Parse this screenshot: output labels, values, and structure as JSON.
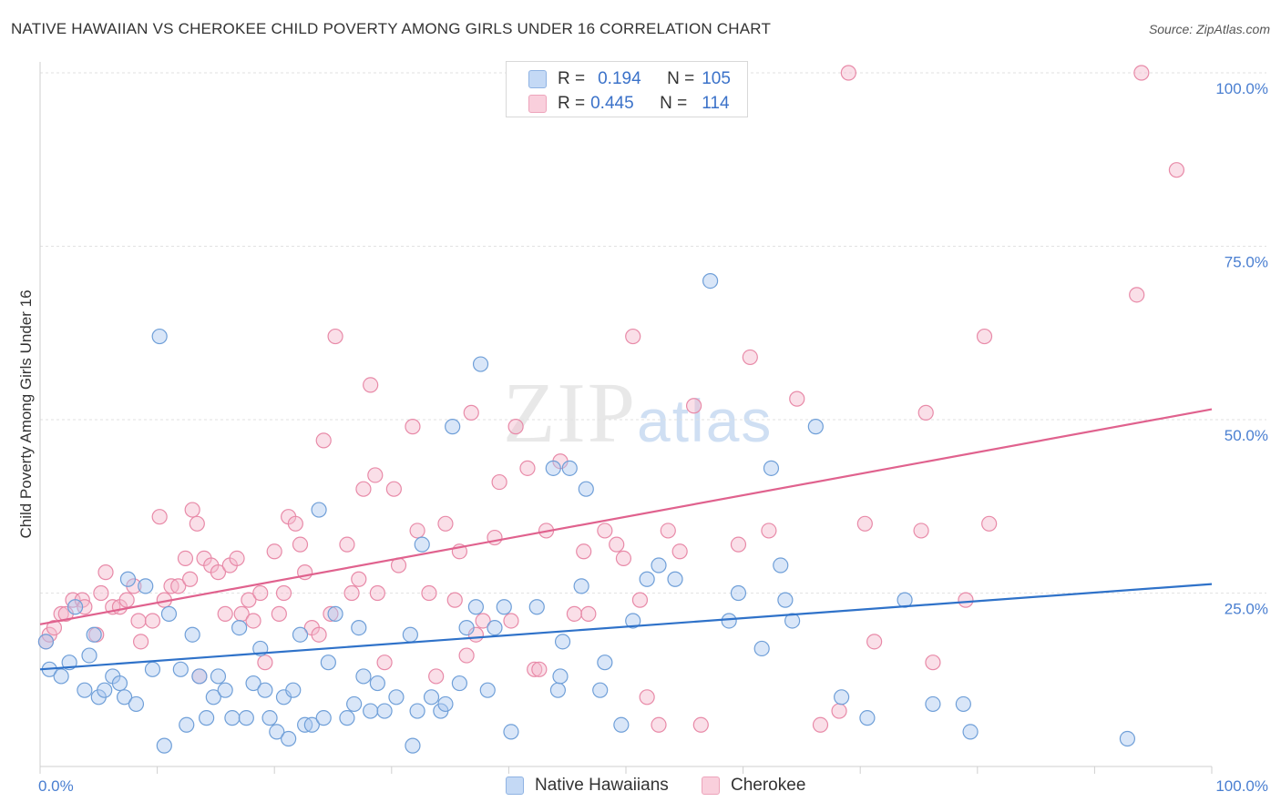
{
  "title": "NATIVE HAWAIIAN VS CHEROKEE CHILD POVERTY AMONG GIRLS UNDER 16 CORRELATION CHART",
  "source": "Source: ZipAtlas.com",
  "watermark": {
    "zip": "ZIP",
    "atlas": "atlas"
  },
  "legend": {
    "rows": [
      {
        "r_label": "R =",
        "r_value": "0.194",
        "n_label": "N =",
        "n_value": "105"
      },
      {
        "r_label": "R =",
        "r_value": "0.445",
        "n_label": "N =",
        "n_value": "114"
      }
    ]
  },
  "bottom_legend": [
    "Native Hawaiians",
    "Cherokee"
  ],
  "colors": {
    "blue_fill": "#aac8f0",
    "blue_stroke": "#6f9fd8",
    "blue_line": "#2f72c9",
    "pink_fill": "#f5b9cc",
    "pink_stroke": "#e88aa8",
    "pink_line": "#e0628e",
    "tick": "#4a7fd1",
    "grid": "#e2e2e2"
  },
  "chart_data": {
    "type": "scatter",
    "title": "NATIVE HAWAIIAN VS CHEROKEE CHILD POVERTY AMONG GIRLS UNDER 16 CORRELATION CHART",
    "xlabel": "",
    "ylabel": "Child Poverty Among Girls Under 16",
    "xlim": [
      0,
      100
    ],
    "ylim": [
      0,
      100
    ],
    "x_tick_labels": [
      "0.0%",
      "100.0%"
    ],
    "y_tick_labels": [
      "25.0%",
      "50.0%",
      "75.0%",
      "100.0%"
    ],
    "y_ticks": [
      25,
      50,
      75,
      100
    ],
    "grid": true,
    "legend_position": "top-center",
    "series": [
      {
        "name": "Native Hawaiians",
        "r": 0.194,
        "n": 105,
        "trend": {
          "x": [
            0,
            100
          ],
          "y": [
            14.0,
            26.3
          ]
        },
        "points": [
          [
            0.5,
            18
          ],
          [
            0.8,
            14
          ],
          [
            1.8,
            13
          ],
          [
            2.5,
            15
          ],
          [
            3.0,
            23
          ],
          [
            3.8,
            11
          ],
          [
            4.2,
            16
          ],
          [
            4.6,
            19
          ],
          [
            5.0,
            10
          ],
          [
            5.5,
            11
          ],
          [
            6.2,
            13
          ],
          [
            6.8,
            12
          ],
          [
            7.2,
            10
          ],
          [
            7.5,
            27
          ],
          [
            8.2,
            9
          ],
          [
            9.0,
            26
          ],
          [
            9.6,
            14
          ],
          [
            10.2,
            62
          ],
          [
            10.6,
            3
          ],
          [
            11.0,
            22
          ],
          [
            12.0,
            14
          ],
          [
            12.5,
            6
          ],
          [
            13.0,
            19
          ],
          [
            13.6,
            13
          ],
          [
            14.2,
            7
          ],
          [
            14.8,
            10
          ],
          [
            15.2,
            13
          ],
          [
            15.8,
            11
          ],
          [
            16.4,
            7
          ],
          [
            17.0,
            20
          ],
          [
            17.6,
            7
          ],
          [
            18.2,
            12
          ],
          [
            18.8,
            17
          ],
          [
            19.2,
            11
          ],
          [
            19.6,
            7
          ],
          [
            20.2,
            5
          ],
          [
            20.8,
            10
          ],
          [
            21.2,
            4
          ],
          [
            21.6,
            11
          ],
          [
            22.2,
            19
          ],
          [
            22.6,
            6
          ],
          [
            23.2,
            6
          ],
          [
            23.8,
            37
          ],
          [
            24.2,
            7
          ],
          [
            24.6,
            15
          ],
          [
            25.2,
            22
          ],
          [
            26.2,
            7
          ],
          [
            26.8,
            9
          ],
          [
            27.2,
            20
          ],
          [
            27.6,
            13
          ],
          [
            28.2,
            8
          ],
          [
            28.8,
            12
          ],
          [
            29.4,
            8
          ],
          [
            30.4,
            10
          ],
          [
            31.6,
            19
          ],
          [
            31.8,
            3
          ],
          [
            32.2,
            8
          ],
          [
            32.6,
            32
          ],
          [
            33.4,
            10
          ],
          [
            34.2,
            8
          ],
          [
            34.6,
            9
          ],
          [
            35.2,
            49
          ],
          [
            35.8,
            12
          ],
          [
            36.4,
            20
          ],
          [
            37.2,
            23
          ],
          [
            37.6,
            58
          ],
          [
            38.2,
            11
          ],
          [
            38.8,
            20
          ],
          [
            39.6,
            23
          ],
          [
            40.2,
            5
          ],
          [
            42.4,
            23
          ],
          [
            43.8,
            43
          ],
          [
            44.2,
            11
          ],
          [
            44.4,
            13
          ],
          [
            44.6,
            18
          ],
          [
            45.2,
            43
          ],
          [
            46.2,
            26
          ],
          [
            46.6,
            40
          ],
          [
            47.8,
            11
          ],
          [
            48.2,
            15
          ],
          [
            49.6,
            6
          ],
          [
            50.6,
            21
          ],
          [
            51.8,
            27
          ],
          [
            52.8,
            29
          ],
          [
            54.2,
            27
          ],
          [
            57.2,
            70
          ],
          [
            58.8,
            21
          ],
          [
            59.6,
            25
          ],
          [
            61.6,
            17
          ],
          [
            62.4,
            43
          ],
          [
            63.2,
            29
          ],
          [
            63.6,
            24
          ],
          [
            64.2,
            21
          ],
          [
            66.2,
            49
          ],
          [
            68.4,
            10
          ],
          [
            70.6,
            7
          ],
          [
            73.8,
            24
          ],
          [
            76.2,
            9
          ],
          [
            78.8,
            9
          ],
          [
            79.4,
            5
          ],
          [
            92.8,
            4
          ]
        ]
      },
      {
        "name": "Cherokee",
        "r": 0.445,
        "n": 114,
        "trend": {
          "x": [
            0,
            100
          ],
          "y": [
            20.5,
            51.5
          ]
        },
        "points": [
          [
            0.5,
            18
          ],
          [
            0.8,
            19
          ],
          [
            1.2,
            20
          ],
          [
            1.8,
            22
          ],
          [
            2.2,
            22
          ],
          [
            2.8,
            24
          ],
          [
            3.6,
            24
          ],
          [
            3.8,
            23
          ],
          [
            4.8,
            19
          ],
          [
            5.2,
            25
          ],
          [
            5.6,
            28
          ],
          [
            6.2,
            23
          ],
          [
            6.8,
            23
          ],
          [
            7.4,
            24
          ],
          [
            8.0,
            26
          ],
          [
            8.4,
            21
          ],
          [
            8.6,
            18
          ],
          [
            9.6,
            21
          ],
          [
            10.2,
            36
          ],
          [
            10.6,
            24
          ],
          [
            11.2,
            26
          ],
          [
            11.8,
            26
          ],
          [
            12.4,
            30
          ],
          [
            12.8,
            27
          ],
          [
            13.0,
            37
          ],
          [
            13.4,
            35
          ],
          [
            13.6,
            13
          ],
          [
            14.0,
            30
          ],
          [
            14.6,
            29
          ],
          [
            15.2,
            28
          ],
          [
            15.8,
            22
          ],
          [
            16.2,
            29
          ],
          [
            16.8,
            30
          ],
          [
            17.2,
            22
          ],
          [
            17.8,
            24
          ],
          [
            18.2,
            21
          ],
          [
            18.8,
            25
          ],
          [
            19.2,
            15
          ],
          [
            20.0,
            31
          ],
          [
            20.4,
            22
          ],
          [
            20.8,
            25
          ],
          [
            21.2,
            36
          ],
          [
            21.8,
            35
          ],
          [
            22.2,
            32
          ],
          [
            22.6,
            28
          ],
          [
            23.2,
            20
          ],
          [
            23.8,
            19
          ],
          [
            24.2,
            47
          ],
          [
            24.8,
            22
          ],
          [
            25.2,
            62
          ],
          [
            26.2,
            32
          ],
          [
            26.6,
            25
          ],
          [
            27.2,
            27
          ],
          [
            27.6,
            40
          ],
          [
            28.2,
            55
          ],
          [
            28.6,
            42
          ],
          [
            28.8,
            25
          ],
          [
            29.4,
            15
          ],
          [
            30.2,
            40
          ],
          [
            30.6,
            29
          ],
          [
            31.8,
            49
          ],
          [
            32.2,
            34
          ],
          [
            33.2,
            25
          ],
          [
            33.8,
            13
          ],
          [
            34.6,
            35
          ],
          [
            35.4,
            24
          ],
          [
            35.8,
            31
          ],
          [
            36.4,
            16
          ],
          [
            36.8,
            51
          ],
          [
            37.2,
            19
          ],
          [
            37.8,
            21
          ],
          [
            38.8,
            33
          ],
          [
            39.2,
            41
          ],
          [
            40.2,
            21
          ],
          [
            40.6,
            49
          ],
          [
            41.6,
            43
          ],
          [
            42.2,
            14
          ],
          [
            42.6,
            14
          ],
          [
            43.2,
            34
          ],
          [
            44.4,
            44
          ],
          [
            45.6,
            22
          ],
          [
            46.4,
            31
          ],
          [
            46.8,
            22
          ],
          [
            48.2,
            34
          ],
          [
            49.2,
            32
          ],
          [
            49.8,
            30
          ],
          [
            50.6,
            62
          ],
          [
            51.2,
            24
          ],
          [
            51.8,
            10
          ],
          [
            52.8,
            6
          ],
          [
            53.6,
            34
          ],
          [
            54.6,
            31
          ],
          [
            55.8,
            52
          ],
          [
            56.4,
            6
          ],
          [
            59.6,
            32
          ],
          [
            60.6,
            59
          ],
          [
            62.2,
            34
          ],
          [
            64.6,
            53
          ],
          [
            66.6,
            6
          ],
          [
            68.2,
            8
          ],
          [
            69.0,
            100
          ],
          [
            70.4,
            35
          ],
          [
            71.2,
            18
          ],
          [
            75.2,
            34
          ],
          [
            75.6,
            51
          ],
          [
            76.2,
            15
          ],
          [
            79.0,
            24
          ],
          [
            80.6,
            62
          ],
          [
            81.0,
            35
          ],
          [
            93.6,
            68
          ],
          [
            94.0,
            100
          ],
          [
            97.0,
            86
          ]
        ]
      }
    ]
  }
}
